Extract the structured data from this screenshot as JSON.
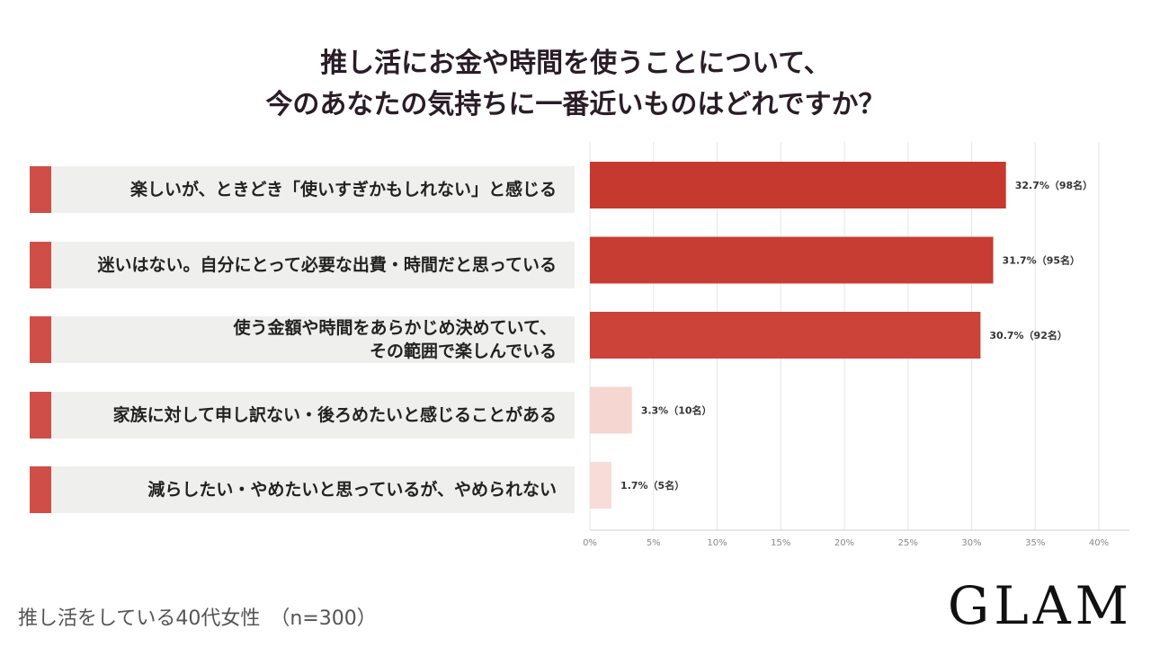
{
  "title": {
    "line1": "推し活にお金や時間を使うことについて、",
    "line2": "今のあなたの気持ちに一番近いものはどれですか？"
  },
  "rows": [
    {
      "lines": [
        "楽しいが、ときどき「使いすぎかもしれない」と感じる"
      ]
    },
    {
      "lines": [
        "迷いはない。自分にとって必要な出費・時間だと思っている"
      ]
    },
    {
      "lines": [
        "使う金額や時間をあらかじめ決めていて、",
        "その範囲で楽しんでいる"
      ]
    },
    {
      "lines": [
        "家族に対して申し訳ない・後ろめたいと感じることがある"
      ]
    },
    {
      "lines": [
        "減らしたい・やめたいと思っているが、やめられない"
      ]
    }
  ],
  "chart_data": {
    "type": "bar",
    "orientation": "horizontal",
    "categories": [
      "楽しいが、ときどき「使いすぎかもしれない」と感じる",
      "迷いはない。自分にとって必要な出費・時間だと思っている",
      "使う金額や時間をあらかじめ決めていて、その範囲で楽しんでいる",
      "家族に対して申し訳ない・後ろめたいと感じることがある",
      "減らしたい・やめたいと思っているが、やめられない"
    ],
    "values": [
      32.7,
      31.7,
      30.7,
      3.3,
      1.7
    ],
    "data_labels": [
      "32.7%（98名）",
      "31.7%（95名）",
      "30.7%（92名）",
      "3.3%（10名）",
      "1.7%（5名）"
    ],
    "bar_colors": [
      "#c5392f",
      "#c83d33",
      "#cb4339",
      "#f6d6d1",
      "#f8dcd8"
    ],
    "xlim": [
      0,
      40
    ],
    "x_ticks": [
      0,
      5,
      10,
      15,
      20,
      25,
      30,
      35,
      40
    ],
    "x_tick_labels": [
      "0%",
      "5%",
      "10%",
      "15%",
      "20%",
      "25%",
      "30%",
      "35%",
      "40%"
    ],
    "grid": "vertical",
    "legend": "none"
  },
  "footnote": "推し活をしている40代女性　（n=300）",
  "logo": "GLAM",
  "colors": {
    "accent": "#cf4f48",
    "label_background": "#efefed",
    "grid": "#e6e6e6",
    "title": "#2a1d27"
  }
}
